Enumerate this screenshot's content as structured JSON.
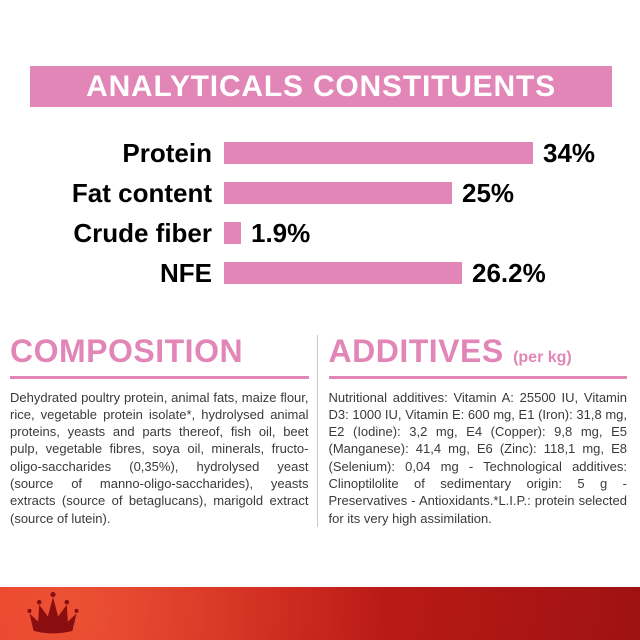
{
  "banner": {
    "title": "ANALYTICALS CONSTITUENTS"
  },
  "chart_data": {
    "type": "bar",
    "title": "ANALYTICALS CONSTITUENTS",
    "categories": [
      "Protein",
      "Fat content",
      "Crude fiber",
      "NFE"
    ],
    "values": [
      34,
      25,
      1.9,
      26.2
    ],
    "value_labels": [
      "34%",
      "25%",
      "1.9%",
      "26.2%"
    ],
    "xlabel": "",
    "ylabel": "",
    "xlim": [
      0,
      37
    ],
    "grid": false,
    "legend": "none",
    "bar_color": "#e186b7"
  },
  "composition": {
    "title": "COMPOSITION",
    "body": "Dehydrated poultry protein, animal fats, maize flour, rice, vegetable protein isolate*, hydrolysed animal proteins, yeasts and parts thereof, fish oil, beet pulp, vegetable fibres, soya oil, minerals, fructo-oligo-saccharides (0,35%), hydrolysed yeast (source of manno-oligo-saccharides), yeasts extracts (source of betaglucans), marigold extract (source of lutein)."
  },
  "additives": {
    "title": "ADDITIVES",
    "unit": "(per kg)",
    "body": "Nutritional additives: Vitamin A: 25500 IU, Vitamin D3: 1000 IU, Vitamin E: 600 mg, E1 (Iron): 31,8 mg, E2 (Iodine): 3,2 mg, E4 (Copper): 9,8 mg, E5 (Manganese): 41,4 mg, E6 (Zinc): 118,1 mg, E8 (Selenium): 0,04 mg - Technological additives: Clinoptilolite of sedimentary origin: 5 g - Preservatives - Antioxidants.*L.I.P.: protein selected for its very high assimilation."
  },
  "footer": {
    "logo": "royal-canin-crown"
  },
  "colors": {
    "pink": "#e186b7",
    "red_band_1": "#dd2d22",
    "red_band_2": "#c41d18",
    "red_band_3": "#9e1212",
    "logo_red": "#8a0d10"
  }
}
